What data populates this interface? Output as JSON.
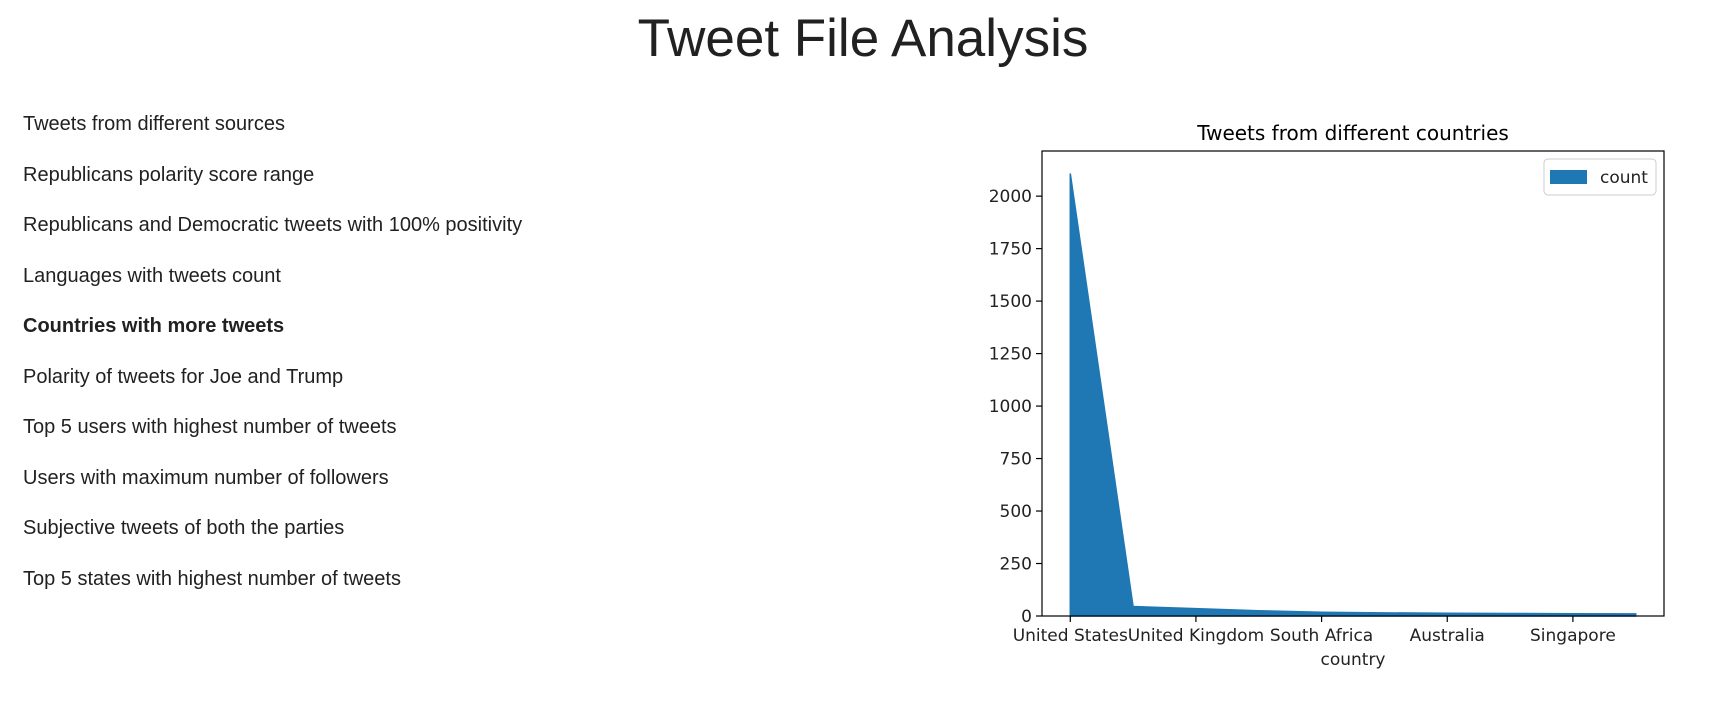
{
  "page": {
    "title": "Tweet File Analysis"
  },
  "nav": {
    "items": [
      {
        "label": "Tweets from different sources",
        "active": false
      },
      {
        "label": "Republicans polarity score range",
        "active": false
      },
      {
        "label": "Republicans and Democratic tweets with 100% positivity",
        "active": false
      },
      {
        "label": "Languages with tweets count",
        "active": false
      },
      {
        "label": "Countries with more tweets",
        "active": true
      },
      {
        "label": "Polarity of tweets for Joe and Trump",
        "active": false
      },
      {
        "label": "Top 5 users with highest number of tweets",
        "active": false
      },
      {
        "label": "Users with maximum number of followers",
        "active": false
      },
      {
        "label": "Subjective tweets of both the parties",
        "active": false
      },
      {
        "label": "Top 5 states with highest number of tweets",
        "active": false
      }
    ]
  },
  "chart_data": {
    "type": "area",
    "title": "Tweets from different countries",
    "xlabel": "country",
    "ylabel": "",
    "categories": [
      "United States",
      "United Kingdom",
      "South Africa",
      "Australia",
      "Singapore"
    ],
    "x_tick_positions": [
      0,
      2,
      4,
      6,
      8
    ],
    "series": [
      {
        "name": "count",
        "color": "#1f77b4",
        "x": [
          0,
          1,
          2,
          3,
          4,
          5,
          6,
          7,
          8,
          9
        ],
        "values": [
          2108,
          45,
          35,
          25,
          18,
          15,
          13,
          12,
          11,
          10
        ]
      }
    ],
    "xlim": [
      -0.45,
      9.45
    ],
    "ylim": [
      0,
      2215
    ],
    "y_ticks": [
      0,
      250,
      500,
      750,
      1000,
      1250,
      1500,
      1750,
      2000
    ],
    "legend": "top-right",
    "grid": false
  }
}
